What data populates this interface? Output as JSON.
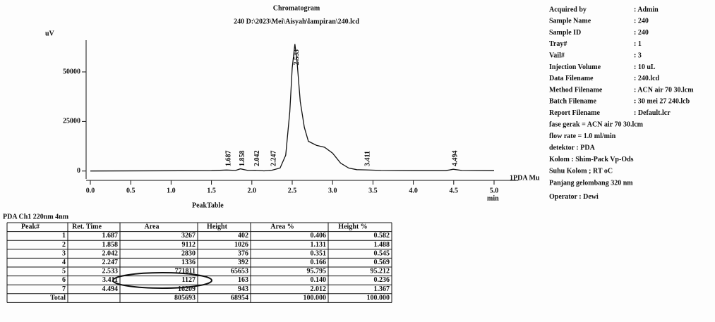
{
  "report": {
    "title": "Chromatogram",
    "subtitle": "240 D:\\2023\\Mei\\Aisyah\\lampiran\\240.lcd"
  },
  "chromatogram": {
    "type": "line",
    "y_label": "uV",
    "x_label": "min",
    "trace_label": "1PDA Mu",
    "color": "#111111",
    "x": [
      0.0,
      1.5,
      1.687,
      1.8,
      1.858,
      1.95,
      2.042,
      2.15,
      2.247,
      2.35,
      2.42,
      2.47,
      2.5,
      2.533,
      2.56,
      2.6,
      2.65,
      2.7,
      2.8,
      2.9,
      3.0,
      3.1,
      3.2,
      3.3,
      3.411,
      3.6,
      4.0,
      4.4,
      4.494,
      4.6,
      5.0
    ],
    "values": [
      0,
      200,
      500,
      300,
      1100,
      300,
      400,
      100,
      400,
      1500,
      8000,
      30000,
      52000,
      64000,
      55000,
      35000,
      22000,
      15000,
      13000,
      12000,
      9000,
      4000,
      1500,
      700,
      600,
      300,
      200,
      200,
      900,
      300,
      200
    ],
    "peak_labels": [
      1.687,
      1.858,
      2.042,
      2.247,
      2.533,
      3.411,
      4.494
    ],
    "xlim": [
      0,
      5.3
    ],
    "xticks": [
      {
        "value": 0,
        "label": "0.0"
      },
      0.5,
      {
        "value": 1,
        "label": "1.0"
      },
      1.5,
      {
        "value": 2,
        "label": "2.0"
      },
      2.5,
      {
        "value": 3,
        "label": "3.0"
      },
      3.5,
      {
        "value": 4,
        "label": "4.0"
      },
      4.5,
      {
        "value": 5,
        "label": "5.0"
      }
    ],
    "ylim": [
      -4000,
      66000
    ],
    "yticks": [
      0,
      25000,
      50000
    ]
  },
  "peak_table": {
    "title": "PeakTable",
    "channel": "PDA Ch1 220nm 4nm",
    "headers": [
      "Peak#",
      "Ret. Time",
      "Area",
      "Height",
      "Area %",
      "Height %"
    ],
    "rows": [
      [
        "1",
        "1.687",
        "3267",
        "402",
        "0.406",
        "0.582"
      ],
      [
        "2",
        "1.858",
        "9112",
        "1026",
        "1.131",
        "1.488"
      ],
      [
        "3",
        "2.042",
        "2830",
        "376",
        "0.351",
        "0.545"
      ],
      [
        "4",
        "2.247",
        "1336",
        "392",
        "0.166",
        "0.569"
      ],
      [
        "5",
        "2.533",
        "771811",
        "65653",
        "95.795",
        "95.212"
      ],
      [
        "6",
        "3.411",
        "1127",
        "163",
        "0.140",
        "0.236"
      ],
      [
        "7",
        "4.494",
        "16209",
        "943",
        "2.012",
        "1.367"
      ]
    ],
    "total": {
      "label": "Total",
      "area": "805693",
      "height": "68954",
      "area_pct": "100.000",
      "height_pct": "100.000"
    }
  },
  "sample_info": {
    "fields": [
      [
        "Acquired by",
        ": Admin"
      ],
      [
        "Sample Name",
        ": 240"
      ],
      [
        "Sample ID",
        ": 240"
      ],
      [
        "Tray#",
        ": 1"
      ],
      [
        "Vail#",
        ": 3"
      ],
      [
        "Injection Volume",
        ": 10 uL"
      ],
      [
        "Data Filename",
        ": 240.lcd"
      ],
      [
        "Method Filename",
        ": ACN air 70 30.lcm"
      ],
      [
        "Batch Filename",
        ": 30 mei 27 240.lcb"
      ],
      [
        "Report Filename",
        ": Default.lcr"
      ]
    ],
    "notes": [
      "fase gerak = ACN air 70 30.lcm",
      "flow rate = 1.0  ml/min",
      "detektor : PDA",
      "Kolom : Shim-Pack Vp-Ods",
      "Suhu Kolom ; RT oC",
      "Panjang gelombang 320 nm",
      "Operator :  Dewi"
    ]
  }
}
